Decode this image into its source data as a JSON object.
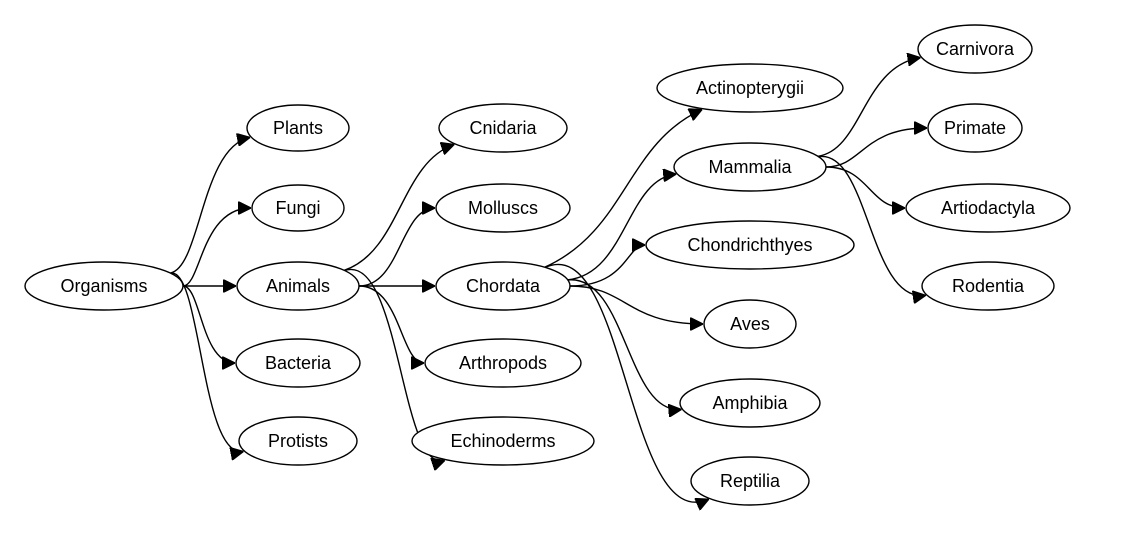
{
  "diagram": {
    "type": "directed-tree",
    "nodes": [
      {
        "id": "organisms",
        "label": "Organisms"
      },
      {
        "id": "plants",
        "label": "Plants"
      },
      {
        "id": "fungi",
        "label": "Fungi"
      },
      {
        "id": "animals",
        "label": "Animals"
      },
      {
        "id": "bacteria",
        "label": "Bacteria"
      },
      {
        "id": "protists",
        "label": "Protists"
      },
      {
        "id": "cnidaria",
        "label": "Cnidaria"
      },
      {
        "id": "molluscs",
        "label": "Molluscs"
      },
      {
        "id": "chordata",
        "label": "Chordata"
      },
      {
        "id": "arthropods",
        "label": "Arthropods"
      },
      {
        "id": "echinoderms",
        "label": "Echinoderms"
      },
      {
        "id": "actinopterygii",
        "label": "Actinopterygii"
      },
      {
        "id": "mammalia",
        "label": "Mammalia"
      },
      {
        "id": "chondrichthyes",
        "label": "Chondrichthyes"
      },
      {
        "id": "aves",
        "label": "Aves"
      },
      {
        "id": "amphibia",
        "label": "Amphibia"
      },
      {
        "id": "reptilia",
        "label": "Reptilia"
      },
      {
        "id": "carnivora",
        "label": "Carnivora"
      },
      {
        "id": "primate",
        "label": "Primate"
      },
      {
        "id": "artiodactyla",
        "label": "Artiodactyla"
      },
      {
        "id": "rodentia",
        "label": "Rodentia"
      }
    ],
    "edges": [
      {
        "from": "organisms",
        "to": "plants"
      },
      {
        "from": "organisms",
        "to": "fungi"
      },
      {
        "from": "organisms",
        "to": "animals"
      },
      {
        "from": "organisms",
        "to": "bacteria"
      },
      {
        "from": "organisms",
        "to": "protists"
      },
      {
        "from": "animals",
        "to": "cnidaria"
      },
      {
        "from": "animals",
        "to": "molluscs"
      },
      {
        "from": "animals",
        "to": "chordata"
      },
      {
        "from": "animals",
        "to": "arthropods"
      },
      {
        "from": "animals",
        "to": "echinoderms"
      },
      {
        "from": "chordata",
        "to": "actinopterygii"
      },
      {
        "from": "chordata",
        "to": "mammalia"
      },
      {
        "from": "chordata",
        "to": "chondrichthyes"
      },
      {
        "from": "chordata",
        "to": "aves"
      },
      {
        "from": "chordata",
        "to": "amphibia"
      },
      {
        "from": "chordata",
        "to": "reptilia"
      },
      {
        "from": "mammalia",
        "to": "carnivora"
      },
      {
        "from": "mammalia",
        "to": "primate"
      },
      {
        "from": "mammalia",
        "to": "artiodactyla"
      },
      {
        "from": "mammalia",
        "to": "rodentia"
      }
    ]
  }
}
